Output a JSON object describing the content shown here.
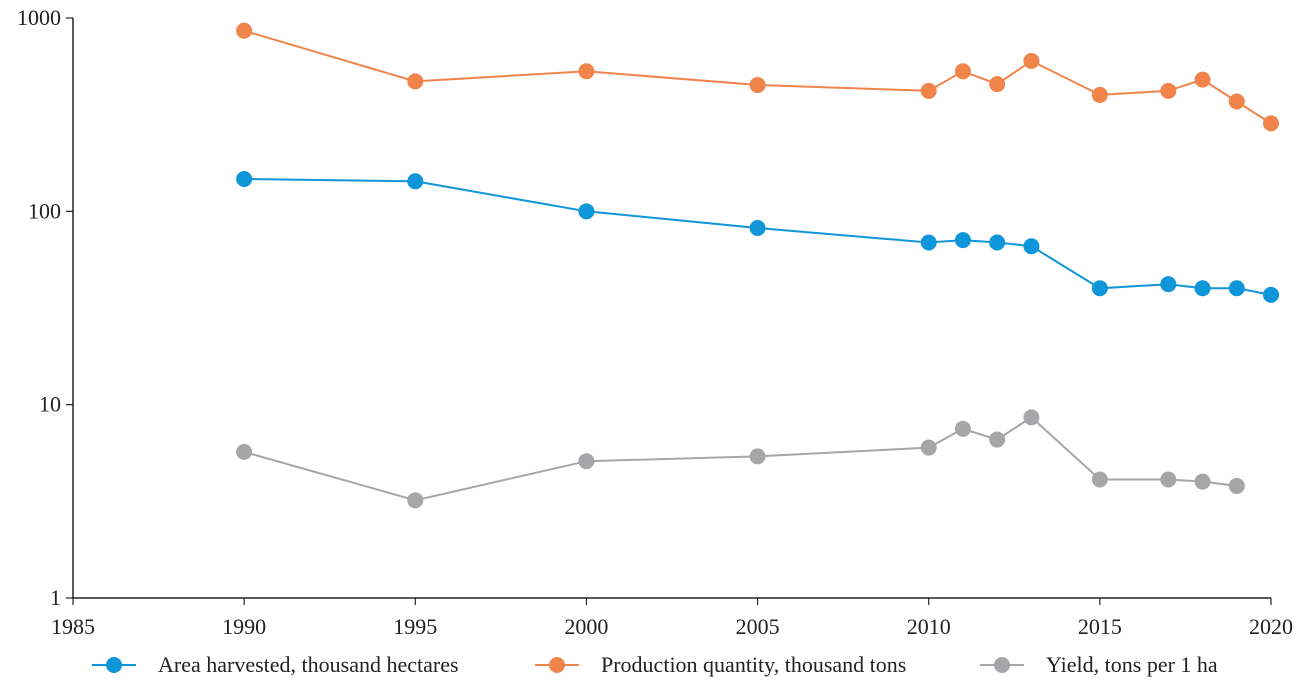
{
  "chart_data": {
    "type": "line",
    "y_scale": "log",
    "xlim": [
      1985,
      2020
    ],
    "ylim": [
      1,
      1000
    ],
    "x_ticks": [
      "1985",
      "1990",
      "1995",
      "2000",
      "2005",
      "2010",
      "2015",
      "2020"
    ],
    "y_ticks": [
      "1",
      "10",
      "100",
      "1000"
    ],
    "grid": false,
    "legend_position": "bottom",
    "series": [
      {
        "name": "Area harvested, thousand hectares",
        "color": "#0f96d8",
        "x": [
          1990,
          1995,
          2000,
          2005,
          2010,
          2011,
          2012,
          2013,
          2015,
          2017,
          2018,
          2019,
          2020
        ],
        "y": [
          147,
          143,
          100,
          82,
          69,
          71,
          69,
          66,
          40,
          42,
          40,
          40,
          37
        ]
      },
      {
        "name": "Production quantity, thousand tons",
        "color": "#f0844a",
        "x": [
          1990,
          1995,
          2000,
          2005,
          2010,
          2011,
          2012,
          2013,
          2015,
          2017,
          2018,
          2019,
          2020
        ],
        "y": [
          860,
          470,
          530,
          450,
          420,
          530,
          455,
          600,
          400,
          420,
          480,
          370,
          285
        ]
      },
      {
        "name": "Yield, tons per 1 ha",
        "color": "#a6a6a8",
        "x": [
          1990,
          1995,
          2000,
          2005,
          2010,
          2011,
          2012,
          2013,
          2015,
          2017,
          2018,
          2019
        ],
        "y": [
          5.7,
          3.2,
          5.1,
          5.4,
          6.0,
          7.5,
          6.6,
          8.6,
          4.1,
          4.1,
          4.0,
          3.8
        ]
      }
    ]
  }
}
